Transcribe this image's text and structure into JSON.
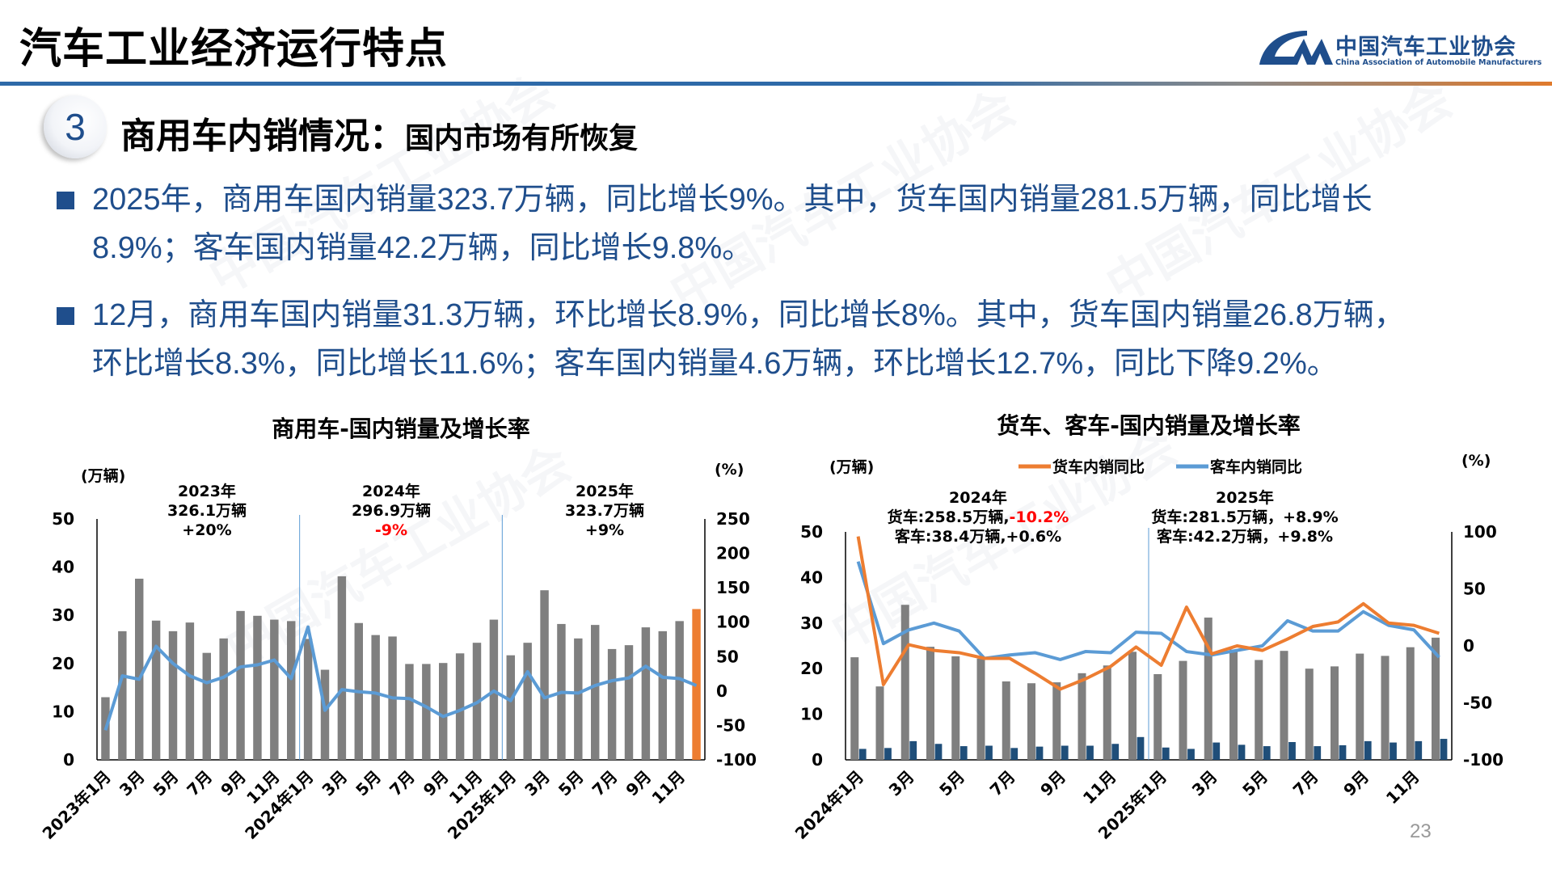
{
  "header": {
    "title": "汽车工业经济运行特点",
    "logo_cn": "中国汽车工业协会",
    "logo_en": "China Association of Automobile Manufacturers"
  },
  "section": {
    "number": "3",
    "title": "商用车内销情况：",
    "subtitle": "国内市场有所恢复"
  },
  "bullets": [
    {
      "lines": [
        "2025年，商用车国内销量323.7万辆，同比增长9%。其中，货车国内销量281.5万辆，同比增长",
        "8.9%；客车国内销量42.2万辆，同比增长9.8%。"
      ]
    },
    {
      "lines": [
        "12月，商用车国内销量31.3万辆，环比增长8.9%，同比增长8%。其中，货车国内销量26.8万辆，",
        "环比增长8.3%，同比增长11.6%；客车国内销量4.6万辆，环比增长12.7%，同比下降9.2%。"
      ]
    }
  ],
  "page_number": "23",
  "colors": {
    "bar_gray": "#7f7f7f",
    "bar_highlight": "#ed7d31",
    "line_blue": "#5b9bd5",
    "line_orange": "#ed7d31",
    "bus_bar": "#1f4e79",
    "text_blue": "#1f4e8c",
    "negative_red": "#ff0000"
  },
  "chart_data": [
    {
      "type": "bar+line",
      "title": "商用车-国内销量及增长率",
      "ylabel_left": "(万辆)",
      "ylabel_right": "(%)",
      "ylim_left": [
        0,
        50
      ],
      "ylim_right": [
        -100,
        250
      ],
      "yticks_left": [
        "0",
        "10",
        "20",
        "30",
        "40",
        "50"
      ],
      "yticks_right": [
        "-100",
        "-50",
        "0",
        "50",
        "100",
        "150",
        "200",
        "250"
      ],
      "xtick_labels": [
        "2023年1月",
        "3月",
        "5月",
        "7月",
        "9月",
        "11月",
        "2024年1月",
        "3月",
        "5月",
        "7月",
        "9月",
        "11月",
        "2025年1月",
        "3月",
        "5月",
        "7月",
        "9月",
        "11月"
      ],
      "annotations": [
        {
          "year": "2023年",
          "total": "326.1万辆",
          "growth": "+20%",
          "negative": false
        },
        {
          "year": "2024年",
          "total": "296.9万辆",
          "growth": "-9%",
          "negative": true
        },
        {
          "year": "2025年",
          "total": "323.7万辆",
          "growth": "+9%",
          "negative": false
        }
      ],
      "sales": [
        13.0,
        26.7,
        37.6,
        28.9,
        26.7,
        28.5,
        22.2,
        25.2,
        30.9,
        29.9,
        29.1,
        28.8,
        25.1,
        18.7,
        38.1,
        28.4,
        25.9,
        25.6,
        19.9,
        19.9,
        20.1,
        22.1,
        24.3,
        29.1,
        21.7,
        24.3,
        35.2,
        28.2,
        25.2,
        28.0,
        23.0,
        23.8,
        27.5,
        26.7,
        28.8,
        31.3
      ],
      "highlight_last": true,
      "yoy": [
        -57,
        22,
        17,
        65,
        40,
        22,
        12,
        20,
        35,
        38,
        45,
        18,
        93,
        -28,
        2,
        -1,
        -3,
        -10,
        -11,
        -23,
        -37,
        -28,
        -17,
        0,
        -14,
        28,
        -10,
        -2,
        -3,
        8,
        15,
        19,
        36,
        20,
        18,
        8
      ]
    },
    {
      "type": "bar+line",
      "title": "货车、客车-国内销量及增长率",
      "ylabel_left": "(万辆)",
      "ylabel_right": "(%)",
      "ylim_left": [
        0,
        50
      ],
      "ylim_right": [
        -100,
        100
      ],
      "yticks_left": [
        "0",
        "10",
        "20",
        "30",
        "40",
        "50"
      ],
      "yticks_right": [
        "-100",
        "-50",
        "0",
        "50",
        "100"
      ],
      "legend": [
        "货车内销同比",
        "客车内销同比"
      ],
      "legend_placement": "top",
      "xtick_labels": [
        "2024年1月",
        "3月",
        "5月",
        "7月",
        "9月",
        "11月",
        "2025年1月",
        "3月",
        "5月",
        "7月",
        "9月",
        "11月"
      ],
      "annotations": [
        {
          "year": "2024年",
          "truck_label": "货车:258.5万辆,",
          "truck_growth": "-10.2%",
          "truck_negative": true,
          "bus_label": "客车:38.4万辆,+0.6%"
        },
        {
          "year": "2025年",
          "truck_label": "货车:281.5万辆，",
          "truck_growth": "+8.9%",
          "truck_negative": false,
          "bus_label": "客车:42.2万辆，+9.8%"
        }
      ],
      "truck_sales": [
        22.5,
        16.1,
        34.0,
        24.8,
        22.7,
        22.2,
        17.2,
        16.8,
        17.0,
        19.0,
        20.7,
        23.7,
        18.8,
        21.7,
        31.2,
        24.2,
        21.9,
        23.9,
        20.0,
        20.5,
        23.3,
        22.8,
        24.7,
        26.8
      ],
      "bus_sales": [
        2.4,
        2.6,
        4.1,
        3.5,
        3.0,
        3.1,
        2.6,
        2.9,
        3.1,
        3.1,
        3.5,
        5.0,
        2.7,
        2.4,
        3.8,
        3.3,
        3.0,
        3.9,
        3.0,
        3.2,
        4.1,
        3.8,
        4.1,
        4.6
      ],
      "truck_yoy": [
        96,
        -34,
        1,
        -4,
        -6,
        -11,
        -11,
        -24,
        -38,
        -29,
        -18,
        -1,
        -17,
        34,
        -7,
        0,
        -4,
        6,
        17,
        21,
        37,
        20,
        18,
        11
      ],
      "bus_yoy": [
        74,
        2,
        14,
        20,
        13,
        -11,
        -8,
        -6,
        -12,
        -5,
        -6,
        12,
        11,
        -5,
        -8,
        -4,
        0,
        22,
        13,
        13,
        30,
        18,
        14,
        -10
      ]
    }
  ]
}
